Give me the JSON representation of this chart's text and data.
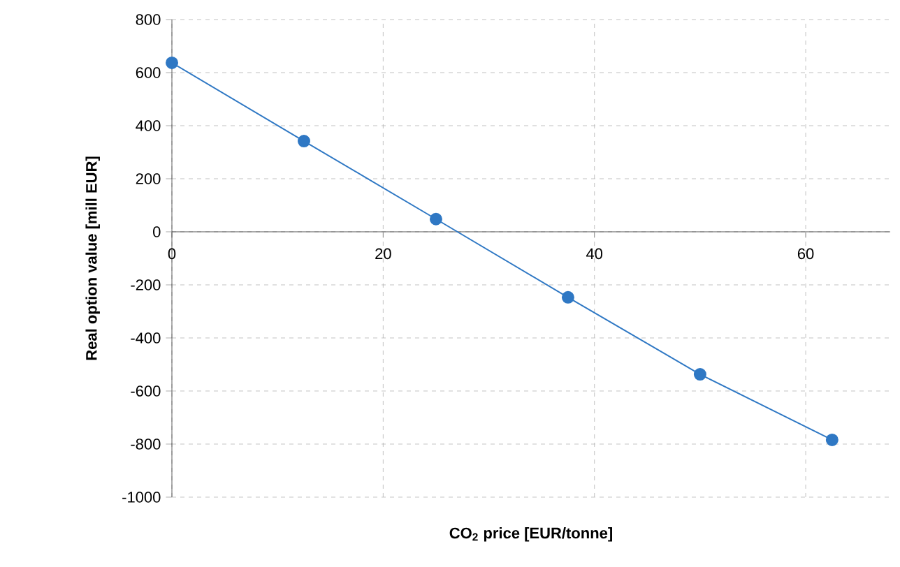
{
  "chart_data": {
    "type": "line",
    "xlabel": "CO$_{2}$ price [EUR/tonne]",
    "ylabel": "Real option value [mill EUR]",
    "x": [
      0,
      12.5,
      25,
      37.5,
      50,
      62.5
    ],
    "series": [
      {
        "color": "#2f78c4",
        "values": [
          637,
          342,
          48,
          -247,
          -537,
          -784
        ]
      }
    ],
    "xlim": [
      0,
      68
    ],
    "ylim": [
      -1000,
      800
    ],
    "xticks": [
      0,
      20,
      40,
      60
    ],
    "yticks": [
      -1000,
      -800,
      -600,
      -400,
      -200,
      0,
      200,
      400,
      600,
      800
    ],
    "grid": true,
    "marker": "circle",
    "line_style": "solid"
  }
}
